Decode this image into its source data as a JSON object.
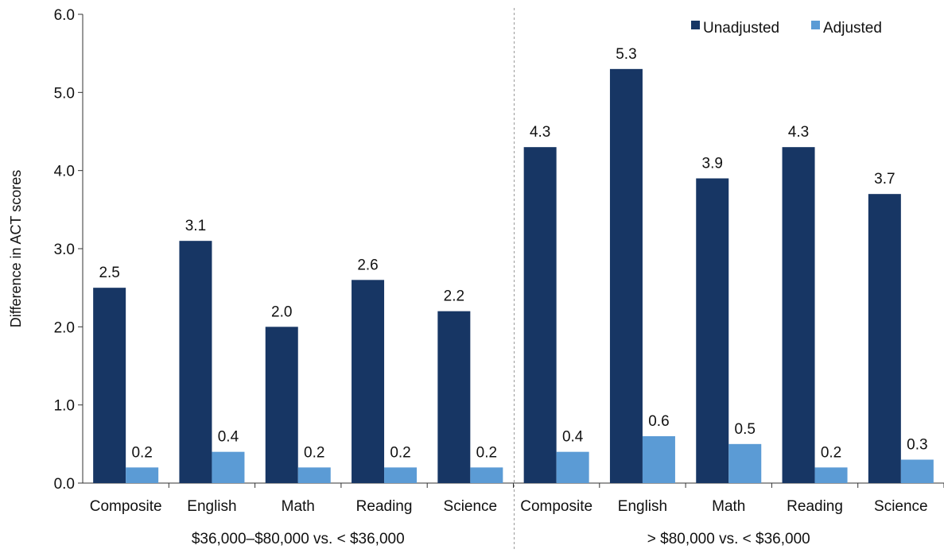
{
  "chart_data": {
    "type": "bar",
    "ylabel": "Difference in ACT scores",
    "xlabel": "",
    "title": "",
    "ylim": [
      0,
      6
    ],
    "yticks": [
      "0.0",
      "1.0",
      "2.0",
      "3.0",
      "4.0",
      "5.0",
      "6.0"
    ],
    "legend": {
      "placement": "top-right",
      "entries": [
        "Unadjusted",
        "Adjusted"
      ]
    },
    "colors": {
      "Unadjusted": "#173664",
      "Adjusted": "#5b9bd5",
      "divider": "#9a9a9a",
      "axis": "#333333"
    },
    "groups": [
      {
        "label": "$36,000–$80,000 vs. < $36,000",
        "categories": [
          "Composite",
          "English",
          "Math",
          "Reading",
          "Science"
        ],
        "series": [
          {
            "name": "Unadjusted",
            "values": [
              2.5,
              3.1,
              2.0,
              2.6,
              2.2
            ],
            "labels": [
              "2.5",
              "3.1",
              "2.0",
              "2.6",
              "2.2"
            ]
          },
          {
            "name": "Adjusted",
            "values": [
              0.2,
              0.4,
              0.2,
              0.2,
              0.2
            ],
            "labels": [
              "0.2",
              "0.4",
              "0.2",
              "0.2",
              "0.2"
            ]
          }
        ]
      },
      {
        "label": "> $80,000 vs. < $36,000",
        "categories": [
          "Composite",
          "English",
          "Math",
          "Reading",
          "Science"
        ],
        "series": [
          {
            "name": "Unadjusted",
            "values": [
              4.3,
              5.3,
              3.9,
              4.3,
              3.7
            ],
            "labels": [
              "4.3",
              "5.3",
              "3.9",
              "4.3",
              "3.7"
            ]
          },
          {
            "name": "Adjusted",
            "values": [
              0.4,
              0.6,
              0.5,
              0.2,
              0.3
            ],
            "labels": [
              "0.4",
              "0.6",
              "0.5",
              "0.2",
              "0.3"
            ]
          }
        ]
      }
    ]
  }
}
